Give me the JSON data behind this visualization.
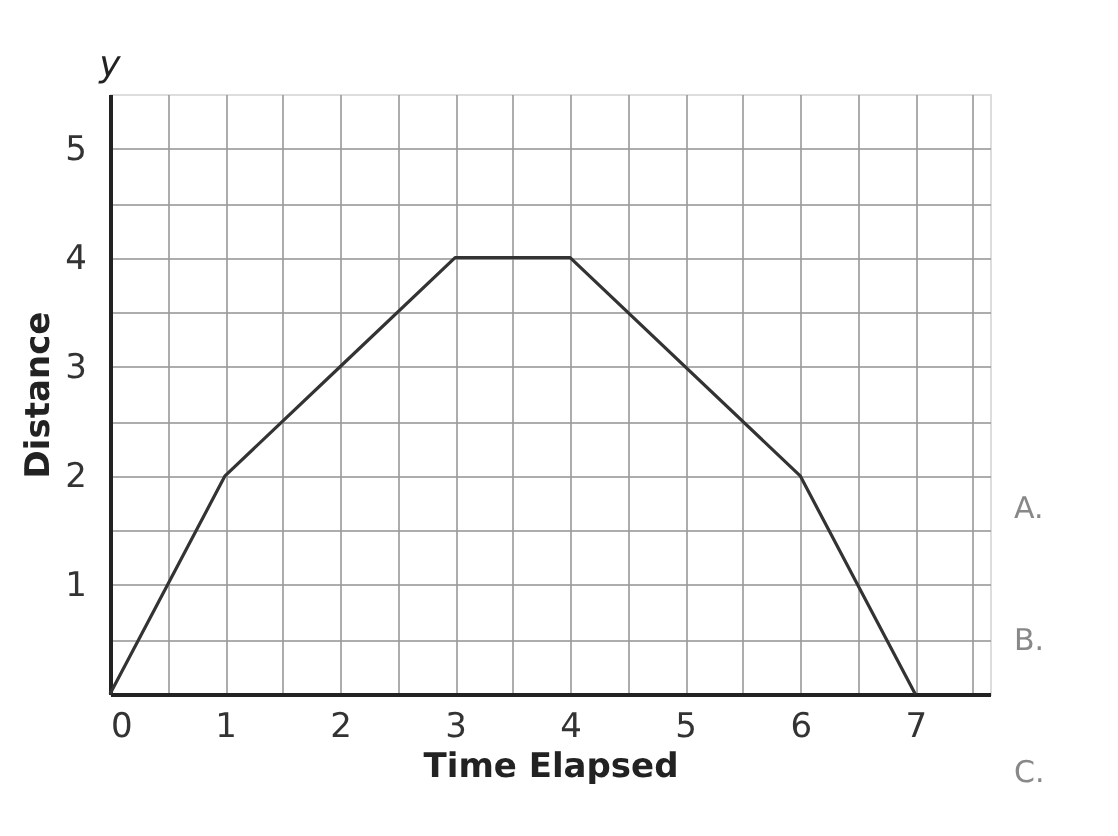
{
  "chart_data": {
    "type": "line",
    "xlabel": "Time Elapsed",
    "ylabel": "Distance",
    "x": [
      0,
      1,
      2,
      3,
      4,
      6,
      7
    ],
    "series": [
      {
        "color": "#333333",
        "values": [
          0,
          2,
          3,
          4,
          4,
          2,
          0
        ]
      }
    ],
    "xlim": [
      0,
      7.65
    ],
    "ylim": [
      0,
      5.5
    ],
    "xticks": [
      0,
      {
        "value": 0.5,
        "label": null
      },
      1,
      {
        "value": 1.5,
        "label": null
      },
      2,
      {
        "value": 2.5,
        "label": null
      },
      3,
      {
        "value": 3.5,
        "label": null
      },
      4,
      {
        "value": 4.5,
        "label": null
      },
      5,
      {
        "value": 5.5,
        "label": null
      },
      6,
      {
        "value": 6.5,
        "label": null
      },
      7,
      {
        "value": 7.5,
        "label": null
      }
    ],
    "yticks": [
      {
        "value": 0.5,
        "label": null
      },
      1,
      {
        "value": 1.5,
        "label": null
      },
      2,
      {
        "value": 2.5,
        "label": null
      },
      3,
      {
        "value": 3.5,
        "label": null
      },
      4,
      {
        "value": 4.5,
        "label": null
      },
      5
    ],
    "grid": true,
    "marker": "none",
    "line_style": "solid",
    "annotations": [
      "y",
      "A.",
      "B.",
      "C."
    ]
  }
}
